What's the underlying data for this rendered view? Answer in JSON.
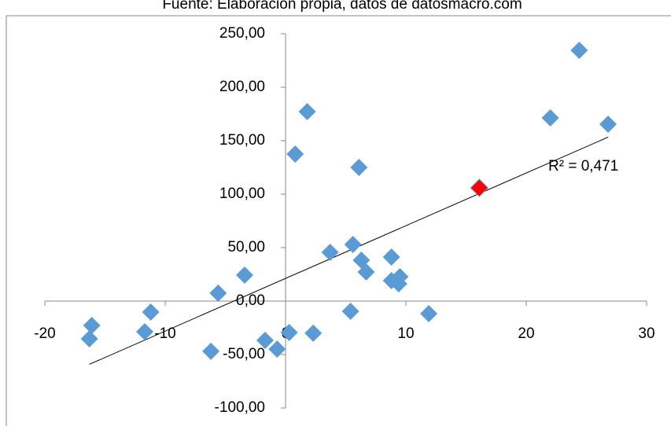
{
  "chart_data": {
    "type": "scatter",
    "title": "Fuente: Elaboración propia, datos de datosmacro.com",
    "annotation": "R² = 0,471",
    "trendline": true,
    "series": [
      {
        "color": "#5b9bd5",
        "x": [
          -16.1,
          -16.3,
          -11.2,
          -11.7,
          -5.6,
          -6.2,
          -3.4,
          -1.7,
          -0.7,
          0.3,
          0.8,
          1.8,
          2.3,
          3.7,
          5.4,
          5.6,
          6.1,
          6.3,
          6.7,
          8.8,
          8.8,
          9.4,
          9.5,
          11.9,
          22.0,
          24.4,
          26.8
        ],
        "values": [
          -22.8,
          -35.3,
          -10.3,
          -28.7,
          7.4,
          -47,
          24.3,
          -36.8,
          -44.9,
          -29.4,
          137.5,
          177.2,
          -30.1,
          45.6,
          -9.6,
          52.9,
          125,
          38.2,
          27.2,
          41.2,
          19.1,
          16.2,
          22.8,
          -11.8,
          171.3,
          234.6,
          165.4
        ]
      },
      {
        "color": "#ff0000",
        "x": [
          16.1
        ],
        "values": [
          105.9
        ]
      }
    ],
    "xlim": [
      -20,
      30
    ],
    "xticks": [
      -20,
      -10,
      0,
      10,
      20,
      30
    ],
    "ylim": [
      -100,
      250
    ],
    "yticks": [
      {
        "value": -100,
        "label": "-100,00"
      },
      {
        "value": -50,
        "label": "-50,00"
      },
      {
        "value": 0,
        "label": "0,00"
      },
      {
        "value": 50,
        "label": "50,00"
      },
      {
        "value": 100,
        "label": "100,00"
      },
      {
        "value": 150,
        "label": "150,00"
      },
      {
        "value": 200,
        "label": "200,00"
      },
      {
        "value": 250,
        "label": "250,00"
      }
    ]
  }
}
